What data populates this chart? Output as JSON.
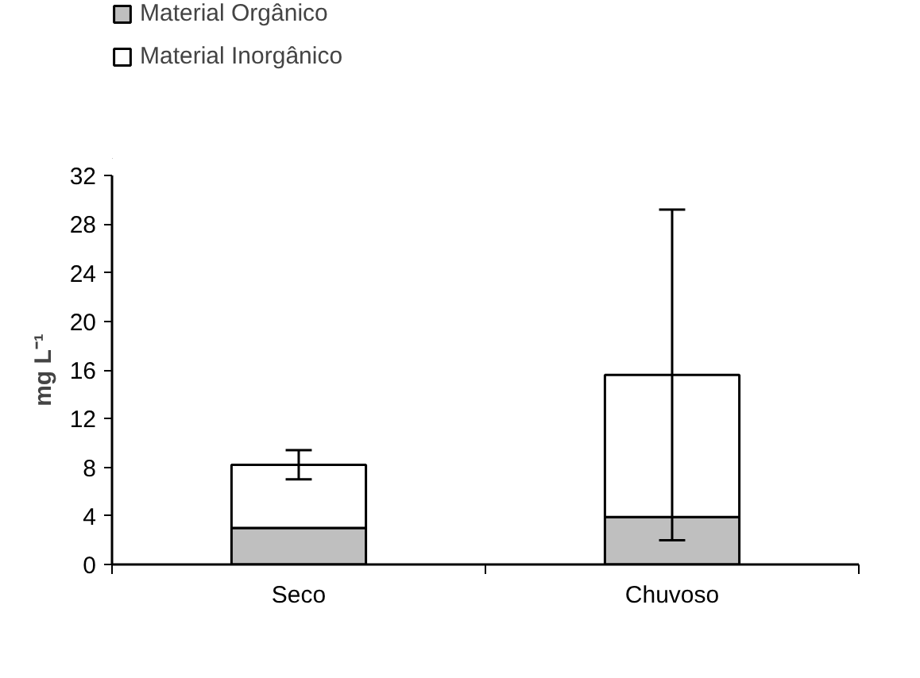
{
  "chart_data": {
    "type": "bar",
    "stacked": true,
    "categories": [
      "Seco",
      "Chuvoso"
    ],
    "ylabel": "mg L⁻¹",
    "ylim": [
      0,
      32
    ],
    "yticks": [
      0,
      4,
      8,
      12,
      16,
      20,
      24,
      28,
      32
    ],
    "grid": false,
    "legend": "top left",
    "series": [
      {
        "name": "Material Orgânico",
        "color": "#bfbfbf",
        "values": [
          3.0,
          3.9
        ]
      },
      {
        "name": "Material Inorgânico",
        "color": "#ffffff",
        "values": [
          5.2,
          11.7
        ],
        "errors": [
          1.2,
          13.6
        ]
      }
    ]
  }
}
